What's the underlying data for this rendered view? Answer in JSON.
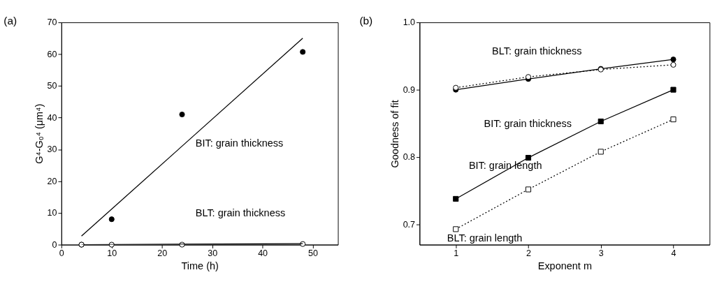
{
  "chart_data": [
    {
      "type": "scatter",
      "title": "(a)",
      "xlabel": "Time (h)",
      "ylabel": "G⁴-G₀⁴ (μm⁴)",
      "xlim": [
        0,
        55
      ],
      "xticks": [
        0,
        10,
        20,
        30,
        40,
        50
      ],
      "ylim": [
        0,
        70
      ],
      "yticks": [
        0,
        10,
        20,
        30,
        40,
        50,
        60,
        70
      ],
      "grid": false,
      "series": [
        {
          "color": "#000000",
          "marker": "circle",
          "x": [
            4,
            10,
            24,
            48
          ],
          "values": [
            0,
            8,
            41,
            60.7
          ]
        },
        {
          "type": "line",
          "color": "#000000",
          "marker": "none",
          "line_style": "solid",
          "x": [
            4,
            48
          ],
          "values": [
            2.7,
            65
          ]
        },
        {
          "color": "#000000",
          "marker": "circle_open",
          "x": [
            4,
            10,
            24,
            48
          ],
          "values": [
            0,
            0,
            0,
            0.2
          ]
        },
        {
          "type": "line",
          "color": "#000000",
          "marker": "none",
          "line_style": "solid",
          "x": [
            4,
            48
          ],
          "values": [
            0,
            0.3
          ]
        }
      ],
      "annotations": [
        "BIT: grain thickness",
        "BLT: grain thickness"
      ]
    },
    {
      "type": "line",
      "title": "(b)",
      "xlabel": "Exponent m",
      "ylabel": "Goodness of fit",
      "xlim": [
        0.5,
        4.5
      ],
      "xticks": [
        1,
        2,
        3,
        4
      ],
      "ylim": [
        0.67,
        1.0
      ],
      "yticks": [
        0.7,
        0.8,
        0.9,
        {
          "value": 1.0,
          "label": "1.0"
        }
      ],
      "grid": false,
      "series": [
        {
          "color": "#000000",
          "marker": "circle",
          "line_style": "solid",
          "x": [
            1,
            2,
            3,
            4
          ],
          "values": [
            0.9,
            0.916,
            0.931,
            0.945
          ]
        },
        {
          "color": "#000000",
          "marker": "circle_open",
          "line_style": "dotted",
          "x": [
            1,
            2,
            3,
            4
          ],
          "values": [
            0.903,
            0.919,
            0.93,
            0.937
          ]
        },
        {
          "color": "#000000",
          "marker": "square",
          "line_style": "solid",
          "x": [
            1,
            2,
            3,
            4
          ],
          "values": [
            0.738,
            0.799,
            0.853,
            0.9
          ]
        },
        {
          "color": "#000000",
          "marker": "square_open",
          "line_style": "dotted",
          "x": [
            1,
            2,
            3,
            4
          ],
          "values": [
            0.693,
            0.752,
            0.808,
            0.856
          ]
        }
      ],
      "annotations": [
        "BLT: grain thickness",
        "BIT: grain thickness",
        "BIT: grain length",
        "BLT: grain length"
      ]
    }
  ]
}
